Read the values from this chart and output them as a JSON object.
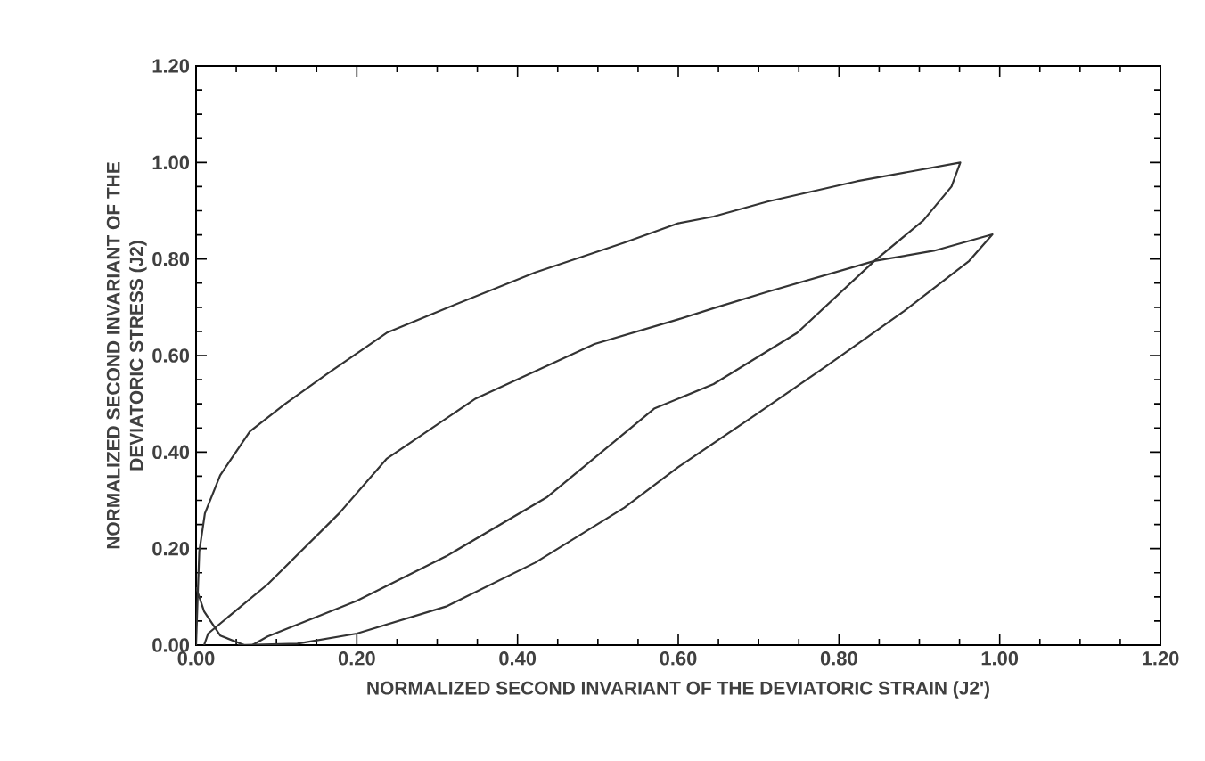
{
  "chart_data": {
    "type": "line",
    "xlabel": "NORMALIZED SECOND INVARIANT OF THE DEVIATORIC STRAIN (J2')",
    "ylabel": "NORMALIZED SECOND INVARIANT OF THE DEVIATORIC STRESS (J2)",
    "series": [
      {
        "color": "#333333",
        "x": [
          0.0,
          0.002,
          0.004,
          0.011,
          0.03,
          0.067,
          0.111,
          0.163,
          0.237,
          0.311,
          0.422,
          0.533,
          0.6,
          0.644,
          0.711,
          0.822,
          0.951,
          0.94,
          0.905,
          0.844,
          0.748,
          0.644,
          0.57,
          0.437,
          0.311,
          0.2,
          0.089,
          0.07
        ],
        "values": [
          0.0,
          0.1,
          0.194,
          0.273,
          0.352,
          0.443,
          0.5,
          0.562,
          0.647,
          0.698,
          0.772,
          0.834,
          0.874,
          0.888,
          0.919,
          0.961,
          1.0,
          0.95,
          0.88,
          0.796,
          0.647,
          0.541,
          0.49,
          0.307,
          0.184,
          0.092,
          0.018,
          0.0
        ]
      },
      {
        "color": "#333333",
        "x": [
          0.01,
          0.015,
          0.089,
          0.178,
          0.237,
          0.348,
          0.496,
          0.6,
          0.644,
          0.711,
          0.844,
          0.918,
          0.991,
          0.962,
          0.881,
          0.785,
          0.696,
          0.6,
          0.533,
          0.422,
          0.311,
          0.2,
          0.126,
          0.052
        ],
        "values": [
          0.0,
          0.024,
          0.126,
          0.273,
          0.386,
          0.511,
          0.624,
          0.675,
          0.698,
          0.732,
          0.796,
          0.817,
          0.851,
          0.796,
          0.692,
          0.579,
          0.477,
          0.369,
          0.285,
          0.171,
          0.08,
          0.024,
          0.003,
          0.0
        ]
      },
      {
        "color": "#333333",
        "x": [
          0.0,
          0.01,
          0.03,
          0.06
        ],
        "values": [
          0.12,
          0.07,
          0.02,
          0.0
        ]
      }
    ],
    "xlim": [
      0,
      1.2
    ],
    "ylim": [
      0,
      1.2
    ],
    "xticks": [
      {
        "value": 0,
        "label": "0.00"
      },
      {
        "value": 0.2,
        "label": "0.20"
      },
      {
        "value": 0.4,
        "label": "0.40"
      },
      {
        "value": 0.6,
        "label": "0.60"
      },
      {
        "value": 0.8,
        "label": "0.80"
      },
      {
        "value": 1.0,
        "label": "1.00"
      },
      {
        "value": 1.2,
        "label": "1.20"
      }
    ],
    "yticks": [
      {
        "value": 0,
        "label": "0.00"
      },
      {
        "value": 0.2,
        "label": "0.20"
      },
      {
        "value": 0.4,
        "label": "0.40"
      },
      {
        "value": 0.6,
        "label": "0.60"
      },
      {
        "value": 0.8,
        "label": "0.80"
      },
      {
        "value": 1.0,
        "label": "1.00"
      },
      {
        "value": 1.2,
        "label": "1.20"
      }
    ],
    "marker": "none",
    "line_style": "solid"
  }
}
